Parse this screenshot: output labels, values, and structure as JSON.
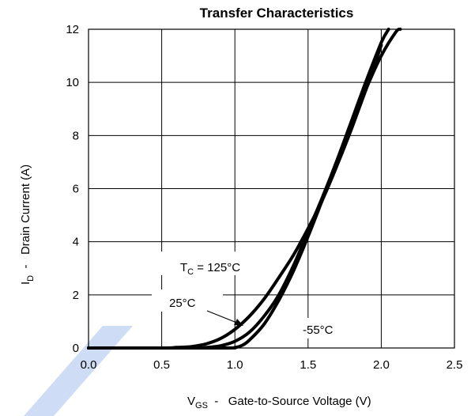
{
  "chart_data": {
    "type": "line",
    "title": "Transfer Characteristics",
    "xlabel_main": "V",
    "xlabel_sub": "GS",
    "xlabel_rest": "  -   Gate-to-Source Voltage (V)",
    "ylabel_main": "I",
    "ylabel_sub": "D",
    "ylabel_rest": "  -   Drain Current (A)",
    "xlim": [
      0.0,
      2.5
    ],
    "ylim": [
      0,
      12
    ],
    "xticks": [
      "0.0",
      "0.5",
      "1.0",
      "1.5",
      "2.0",
      "2.5"
    ],
    "yticks": [
      "0",
      "2",
      "4",
      "6",
      "8",
      "10",
      "12"
    ],
    "grid": true,
    "series": [
      {
        "name": "TC = 125°C",
        "x": [
          0.0,
          0.5,
          0.6,
          0.7,
          0.8,
          0.9,
          1.0,
          1.1,
          1.2,
          1.3,
          1.4,
          1.5,
          1.6,
          1.7,
          1.8,
          1.9,
          2.0
        ],
        "y": [
          0.0,
          0.0,
          0.02,
          0.05,
          0.15,
          0.35,
          0.7,
          1.2,
          1.85,
          2.65,
          3.5,
          4.5,
          5.6,
          6.9,
          8.3,
          9.8,
          11.4
        ]
      },
      {
        "name": "25°C",
        "x": [
          0.0,
          0.7,
          0.8,
          0.9,
          1.0,
          1.1,
          1.2,
          1.3,
          1.4,
          1.5,
          1.6,
          1.7,
          1.8,
          1.9,
          2.0,
          2.05
        ],
        "y": [
          0.0,
          0.0,
          0.02,
          0.08,
          0.25,
          0.6,
          1.2,
          2.0,
          3.1,
          4.4,
          5.7,
          7.1,
          8.6,
          10.1,
          11.5,
          12.0
        ]
      },
      {
        "name": "-55°C",
        "x": [
          0.0,
          0.9,
          1.0,
          1.05,
          1.1,
          1.2,
          1.3,
          1.4,
          1.5,
          1.6,
          1.7,
          1.8,
          1.9,
          2.0,
          2.1,
          2.13
        ],
        "y": [
          0.0,
          0.0,
          0.02,
          0.1,
          0.3,
          0.9,
          1.8,
          2.9,
          4.2,
          5.6,
          7.0,
          8.4,
          9.8,
          11.0,
          11.9,
          12.0
        ]
      }
    ],
    "annotations": {
      "tc_main": "T",
      "tc_sub": "C",
      "tc_rest": " = 125°C",
      "label_25": "25°C",
      "label_m55": "-55°C"
    }
  },
  "colors": {
    "curve": "#000000",
    "grid": "#000000",
    "watermark": "#c9d9f4"
  }
}
